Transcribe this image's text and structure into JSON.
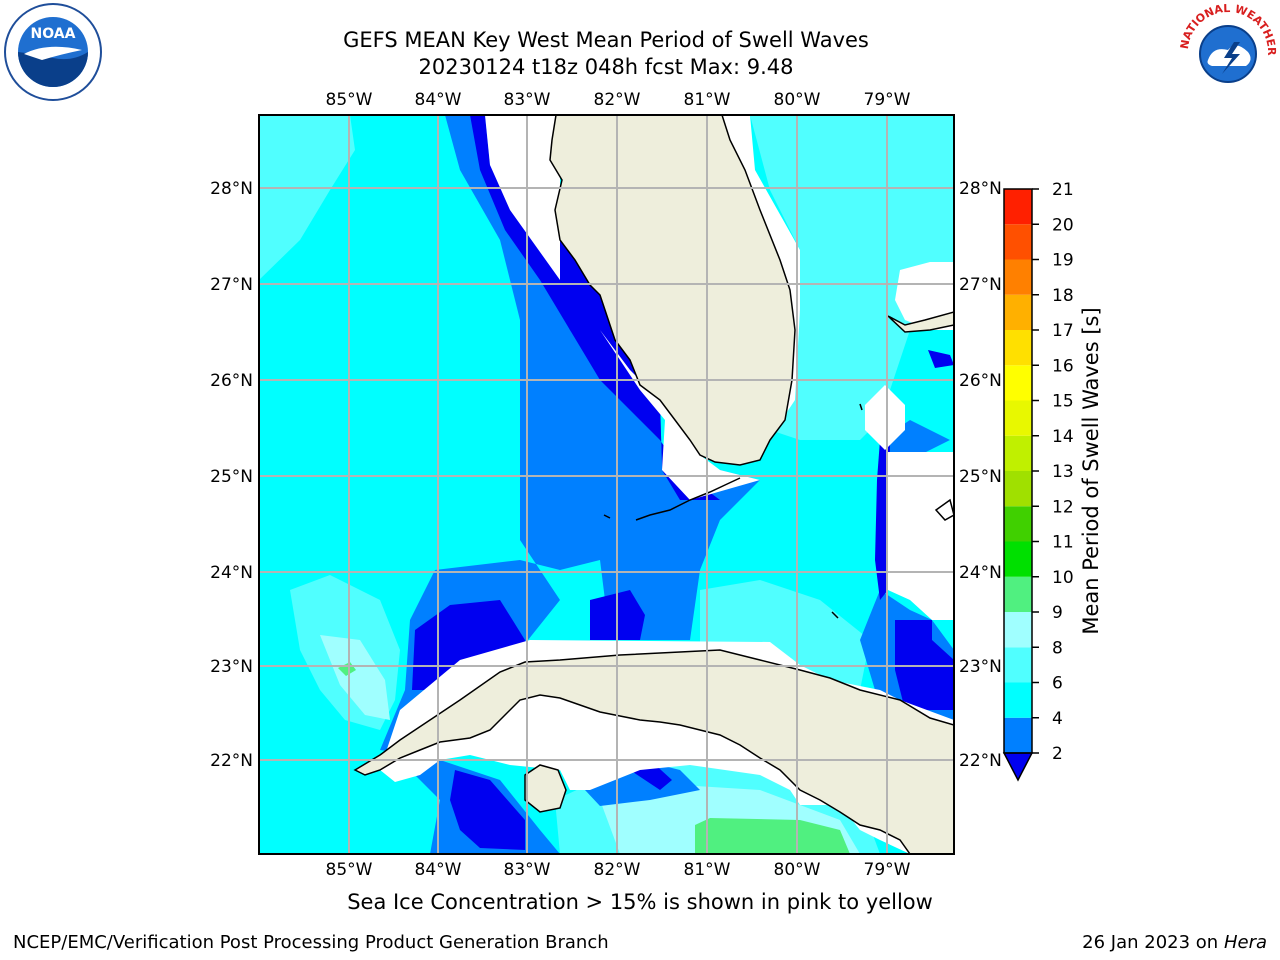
{
  "header": {
    "title_line1": "GEFS MEAN Key West Mean Period of Swell Waves",
    "title_line2": "20230124 t18z 048h fcst   Max: 9.48"
  },
  "logos": {
    "left_text": "NOAA",
    "right_text": "NATIONAL WEATHER SERVICE"
  },
  "map": {
    "lon_labels": [
      "85°W",
      "84°W",
      "83°W",
      "82°W",
      "81°W",
      "80°W",
      "79°W"
    ],
    "lat_labels": [
      "28°N",
      "27°N",
      "26°N",
      "25°N",
      "24°N",
      "23°N",
      "22°N"
    ],
    "colors": {
      "land": "#eeeedc",
      "deep_blue": "#0000f0",
      "mid_blue": "#0080ff",
      "cyan": "#00ffff",
      "light_cyan": "#50ffff",
      "pale_cyan": "#a0ffff",
      "green": "#50f080",
      "no_data": "#ffffff"
    }
  },
  "colorbar": {
    "label": "Mean Period of Swell Waves [s]",
    "ticks": [
      "2",
      "4",
      "6",
      "8",
      "9",
      "10",
      "11",
      "12",
      "13",
      "14",
      "15",
      "16",
      "17",
      "18",
      "19",
      "20",
      "21"
    ],
    "bands": [
      {
        "from": 2,
        "to": 4,
        "color": "#0080ff"
      },
      {
        "from": 4,
        "to": 6,
        "color": "#00ffff"
      },
      {
        "from": 6,
        "to": 8,
        "color": "#50ffff"
      },
      {
        "from": 8,
        "to": 9,
        "color": "#a0ffff"
      },
      {
        "from": 9,
        "to": 10,
        "color": "#50f080"
      },
      {
        "from": 10,
        "to": 11,
        "color": "#00e000"
      },
      {
        "from": 11,
        "to": 12,
        "color": "#40d000"
      },
      {
        "from": 12,
        "to": 13,
        "color": "#a0e000"
      },
      {
        "from": 13,
        "to": 14,
        "color": "#c0f000"
      },
      {
        "from": 14,
        "to": 15,
        "color": "#e8f800"
      },
      {
        "from": 15,
        "to": 16,
        "color": "#ffff00"
      },
      {
        "from": 16,
        "to": 17,
        "color": "#ffe000"
      },
      {
        "from": 17,
        "to": 18,
        "color": "#ffb000"
      },
      {
        "from": 18,
        "to": 19,
        "color": "#ff8000"
      },
      {
        "from": 19,
        "to": 20,
        "color": "#ff5000"
      },
      {
        "from": 20,
        "to": 21,
        "color": "#ff2000"
      }
    ],
    "under_color": "#0000f0"
  },
  "caption": "Sea Ice Concentration > 15% is shown in pink to yellow",
  "footer": {
    "left": "NCEP/EMC/Verification Post Processing Product Generation Branch",
    "right_date": "26 Jan 2023 on ",
    "right_host": "Hera"
  }
}
